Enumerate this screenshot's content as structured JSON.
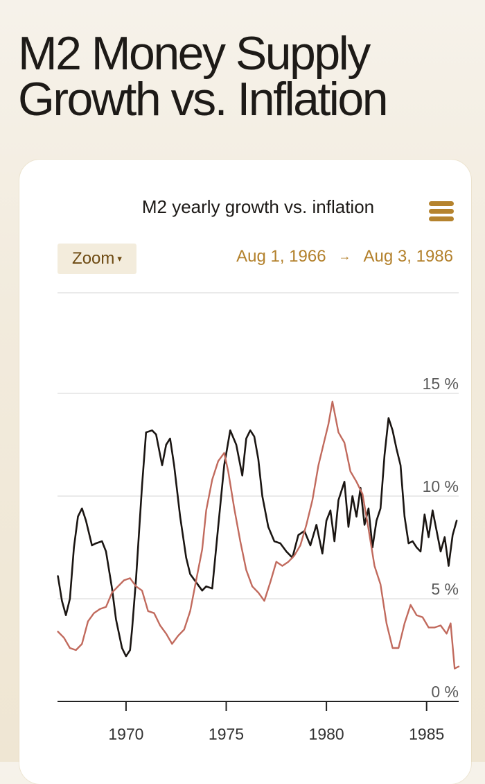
{
  "header": {
    "title_line1": "M2 Money Supply",
    "title_line2": "Growth vs. Inflation"
  },
  "toolbar": {
    "zoom_label": "Zoom",
    "zoom_caret": "▾",
    "range_start": "Aug 1, 1966",
    "range_arrow": "→",
    "range_end": "Aug 3, 1986",
    "menu_icon": "hamburger-menu-icon"
  },
  "colors": {
    "accent": "#b5832e",
    "m2_series": "#1a1512",
    "inflation_series": "#c16a5d"
  },
  "chart_data": {
    "type": "line",
    "title": "M2 yearly growth vs. inflation",
    "xlabel": "",
    "ylabel": "",
    "xlim": [
      1966.58,
      1986.6
    ],
    "ylim": [
      0,
      15
    ],
    "x_ticks": [
      1970,
      1975,
      1980,
      1985
    ],
    "x_tick_labels": [
      "1970",
      "1975",
      "1980",
      "1985"
    ],
    "y_ticks": [
      0,
      5,
      10,
      15
    ],
    "y_tick_labels": [
      "0 %",
      "5 %",
      "10 %",
      "15 %"
    ],
    "grid": true,
    "legend": "none",
    "series": [
      {
        "color": "#1a1512",
        "x": [
          1966.6,
          1966.8,
          1967.0,
          1967.2,
          1967.4,
          1967.6,
          1967.8,
          1968.0,
          1968.3,
          1968.5,
          1968.8,
          1969.0,
          1969.3,
          1969.5,
          1969.8,
          1970.0,
          1970.2,
          1970.3,
          1970.5,
          1970.8,
          1971.0,
          1971.3,
          1971.5,
          1971.8,
          1972.0,
          1972.2,
          1972.4,
          1972.7,
          1973.0,
          1973.2,
          1973.5,
          1973.8,
          1974.0,
          1974.3,
          1974.6,
          1974.9,
          1975.2,
          1975.5,
          1975.8,
          1976.0,
          1976.2,
          1976.4,
          1976.6,
          1976.8,
          1977.1,
          1977.4,
          1977.7,
          1978.0,
          1978.3,
          1978.6,
          1978.9,
          1979.2,
          1979.5,
          1979.8,
          1980.0,
          1980.2,
          1980.4,
          1980.6,
          1980.9,
          1981.1,
          1981.3,
          1981.5,
          1981.7,
          1981.9,
          1982.1,
          1982.3,
          1982.5,
          1982.7,
          1982.9,
          1983.1,
          1983.3,
          1983.5,
          1983.7,
          1983.9,
          1984.1,
          1984.3,
          1984.5,
          1984.7,
          1984.9,
          1985.1,
          1985.3,
          1985.5,
          1985.7,
          1985.9,
          1986.1,
          1986.3,
          1986.5
        ],
        "y": [
          6.1,
          4.9,
          4.2,
          5.0,
          7.5,
          9.0,
          9.4,
          8.8,
          7.6,
          7.7,
          7.8,
          7.3,
          5.5,
          4.0,
          2.6,
          2.2,
          2.5,
          3.5,
          6.0,
          10.5,
          13.1,
          13.2,
          13.0,
          11.5,
          12.5,
          12.8,
          11.5,
          9.0,
          7.0,
          6.2,
          5.8,
          5.4,
          5.6,
          5.5,
          8.5,
          11.5,
          13.2,
          12.5,
          11.0,
          12.8,
          13.2,
          12.9,
          11.8,
          10.0,
          8.5,
          7.8,
          7.7,
          7.3,
          7.0,
          8.1,
          8.3,
          7.6,
          8.6,
          7.2,
          8.8,
          9.3,
          7.8,
          9.8,
          10.7,
          8.5,
          10.0,
          9.0,
          10.4,
          8.6,
          9.4,
          7.5,
          8.8,
          9.4,
          12.0,
          13.8,
          13.2,
          12.3,
          11.5,
          9.0,
          7.7,
          7.8,
          7.5,
          7.3,
          9.1,
          8.0,
          9.3,
          8.3,
          7.3,
          8.0,
          6.6,
          8.1,
          8.8
        ]
      },
      {
        "color": "#c16a5d",
        "x": [
          1966.6,
          1966.9,
          1967.2,
          1967.5,
          1967.8,
          1968.1,
          1968.4,
          1968.7,
          1969.0,
          1969.3,
          1969.6,
          1969.9,
          1970.2,
          1970.5,
          1970.8,
          1971.1,
          1971.4,
          1971.7,
          1972.0,
          1972.3,
          1972.6,
          1972.9,
          1973.2,
          1973.5,
          1973.8,
          1974.0,
          1974.3,
          1974.6,
          1974.9,
          1975.1,
          1975.4,
          1975.7,
          1976.0,
          1976.3,
          1976.6,
          1976.9,
          1977.2,
          1977.5,
          1977.8,
          1978.1,
          1978.4,
          1978.7,
          1979.0,
          1979.3,
          1979.6,
          1979.9,
          1980.1,
          1980.3,
          1980.6,
          1980.9,
          1981.2,
          1981.5,
          1981.8,
          1982.1,
          1982.4,
          1982.7,
          1983.0,
          1983.3,
          1983.6,
          1983.9,
          1984.2,
          1984.5,
          1984.8,
          1985.1,
          1985.4,
          1985.7,
          1986.0,
          1986.2,
          1986.4,
          1986.6
        ],
        "y": [
          3.4,
          3.1,
          2.6,
          2.5,
          2.8,
          3.9,
          4.3,
          4.5,
          4.6,
          5.3,
          5.6,
          5.9,
          6.0,
          5.6,
          5.4,
          4.4,
          4.3,
          3.7,
          3.3,
          2.8,
          3.2,
          3.5,
          4.4,
          5.9,
          7.4,
          9.3,
          10.8,
          11.7,
          12.1,
          11.2,
          9.4,
          7.8,
          6.4,
          5.6,
          5.3,
          4.9,
          5.8,
          6.8,
          6.6,
          6.8,
          7.1,
          7.6,
          8.6,
          9.8,
          11.5,
          12.7,
          13.5,
          14.6,
          13.1,
          12.6,
          11.2,
          10.7,
          10.1,
          8.4,
          6.6,
          5.7,
          3.8,
          2.6,
          2.6,
          3.8,
          4.7,
          4.2,
          4.1,
          3.6,
          3.6,
          3.7,
          3.3,
          3.8,
          1.6,
          1.7
        ]
      }
    ]
  }
}
